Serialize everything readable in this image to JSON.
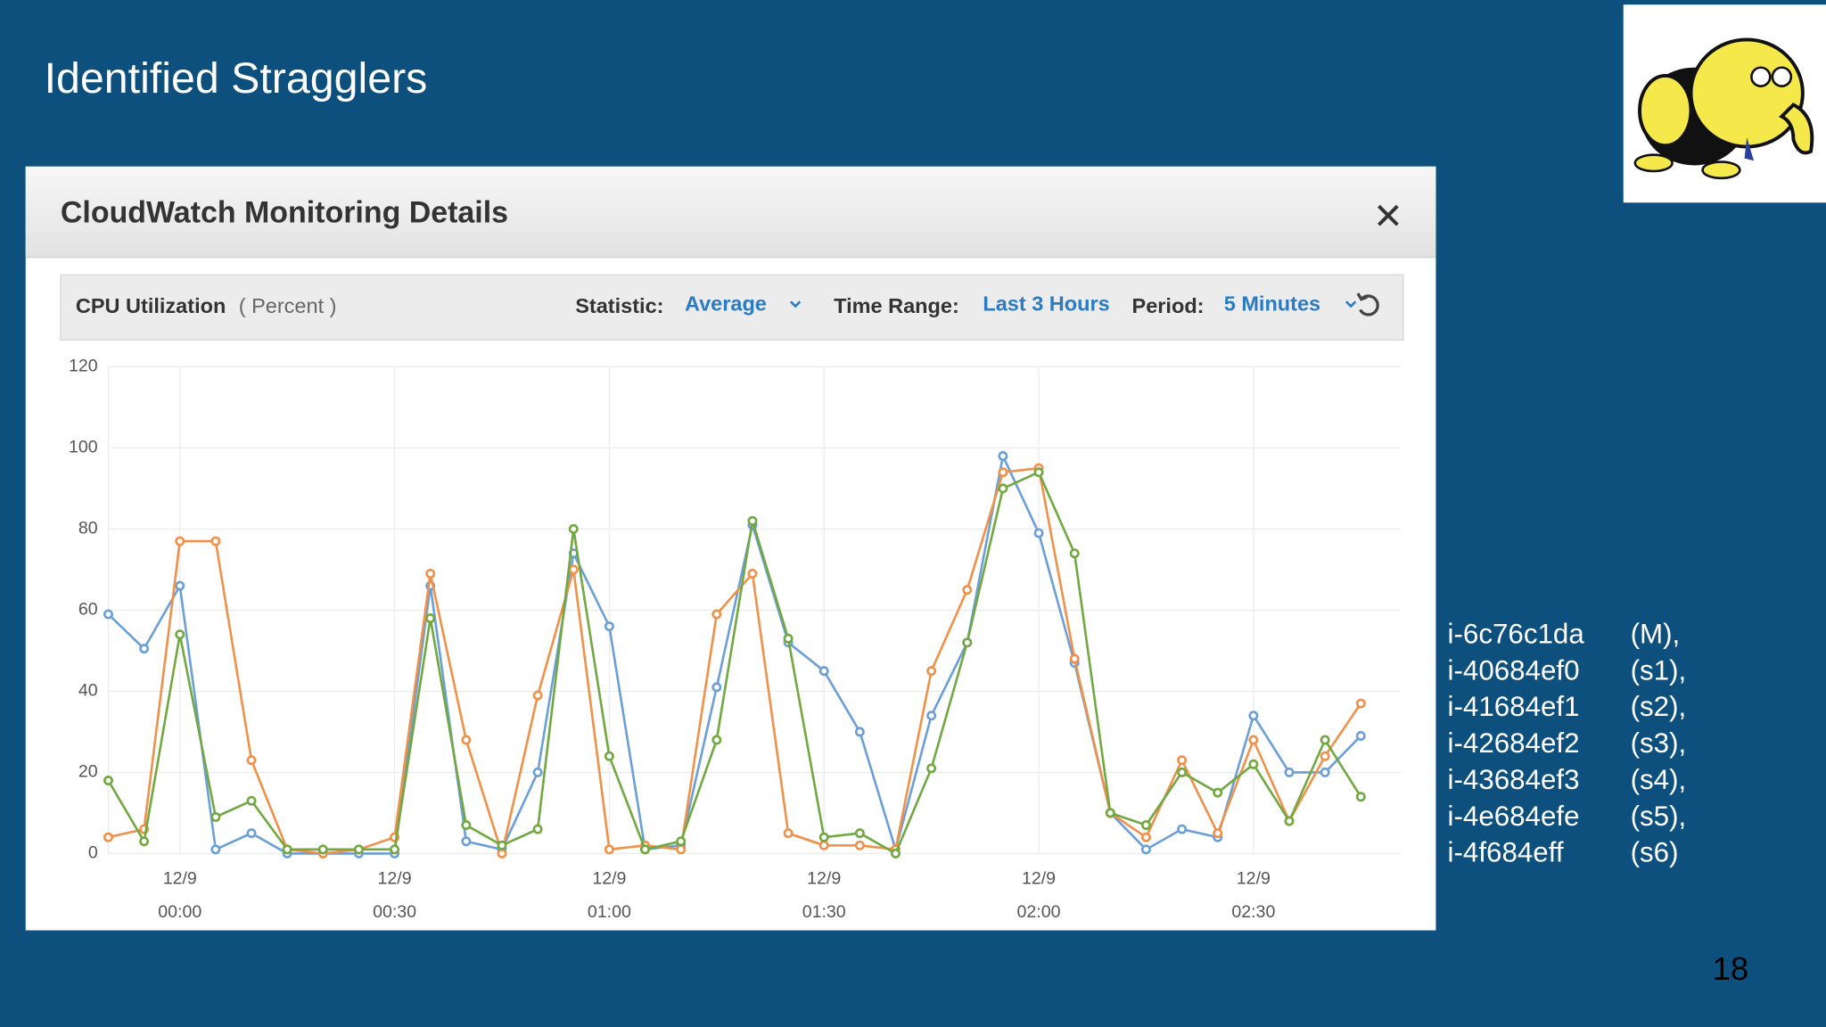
{
  "slide": {
    "title": "Identified Stragglers",
    "page_number": "18",
    "instances": [
      {
        "id": "i-6c76c1da",
        "role": "(M),"
      },
      {
        "id": "i-40684ef0",
        "role": "(s1),"
      },
      {
        "id": "i-41684ef1",
        "role": "(s2),"
      },
      {
        "id": "i-42684ef2",
        "role": "(s3),"
      },
      {
        "id": "i-43684ef3",
        "role": "(s4),"
      },
      {
        "id": "i-4e684efe",
        "role": "(s5),"
      },
      {
        "id": "i-4f684eff",
        "role": "(s6)"
      }
    ]
  },
  "panel": {
    "title": "CloudWatch Monitoring Details"
  },
  "chart_data": {
    "type": "line",
    "title": "CPU Utilization",
    "unit": "( Percent )",
    "controls": {
      "statistic_label": "Statistic:",
      "statistic": "Average",
      "time_range_label": "Time Range:",
      "time_range": "Last 3 Hours",
      "period_label": "Period:",
      "period": "5 Minutes"
    },
    "categories": [
      null,
      null,
      [
        "12/9",
        "00:00"
      ],
      null,
      null,
      null,
      null,
      null,
      [
        "12/9",
        "00:30"
      ],
      null,
      null,
      null,
      null,
      null,
      [
        "12/9",
        "01:00"
      ],
      null,
      null,
      null,
      null,
      null,
      [
        "12/9",
        "01:30"
      ],
      null,
      null,
      null,
      null,
      null,
      [
        "12/9",
        "02:00"
      ],
      null,
      null,
      null,
      null,
      null,
      [
        "12/9",
        "02:30"
      ],
      null,
      null,
      null
    ],
    "series": [
      {
        "color": "#6b9fd6",
        "values": [
          59,
          50.5,
          66,
          1,
          5,
          0,
          0,
          0,
          0,
          66,
          3,
          1,
          20,
          74,
          56,
          1,
          2,
          41,
          81,
          52,
          45,
          30,
          1,
          34,
          52,
          98,
          79,
          47,
          10,
          1,
          6,
          4,
          34,
          20,
          20,
          29
        ]
      },
      {
        "color": "#f0914a",
        "values": [
          4,
          6,
          77,
          77,
          23,
          1,
          0,
          1,
          4,
          69,
          28,
          0,
          39,
          70,
          1,
          2,
          1,
          59,
          69,
          5,
          2,
          2,
          1,
          45,
          65,
          94,
          95,
          48,
          10,
          4,
          23,
          5,
          28,
          8,
          24,
          37
        ]
      },
      {
        "color": "#72a842",
        "values": [
          18,
          3,
          54,
          9,
          13,
          1,
          1,
          1,
          1,
          58,
          7,
          2,
          6,
          80,
          24,
          1,
          3,
          28,
          82,
          53,
          4,
          5,
          0,
          21,
          52,
          90,
          94,
          74,
          10,
          7,
          20,
          15,
          22,
          8,
          28,
          14
        ]
      }
    ],
    "ylim": [
      0,
      120
    ],
    "yticks": [
      0,
      20,
      40,
      60,
      80,
      100,
      120
    ],
    "grid": true
  }
}
